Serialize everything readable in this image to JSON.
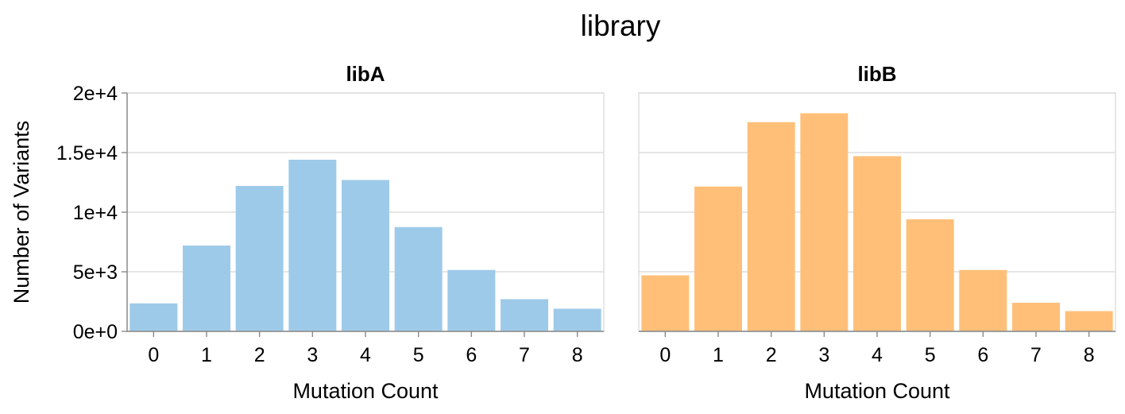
{
  "figure": {
    "title": "library"
  },
  "chart_data": {
    "type": "bar",
    "facet_title": "library",
    "xlabel": "Mutation Count",
    "ylabel": "Number of Variants",
    "ylim": [
      0,
      20000
    ],
    "yticks": [
      0,
      5000,
      10000,
      15000,
      20000
    ],
    "ytick_labels": [
      "0e+0",
      "5e+3",
      "1e+4",
      "1.5e+4",
      "2e+4"
    ],
    "categories": [
      "0",
      "1",
      "2",
      "3",
      "4",
      "5",
      "6",
      "7",
      "8"
    ],
    "grid": true,
    "series": [
      {
        "name": "libA",
        "color": "#9ecae9",
        "values": [
          2350,
          7200,
          12200,
          14400,
          12700,
          8750,
          5150,
          2700,
          1900
        ]
      },
      {
        "name": "libB",
        "color": "#ffbf79",
        "values": [
          4700,
          12150,
          17550,
          18300,
          14700,
          9400,
          5150,
          2400,
          1700
        ]
      }
    ]
  }
}
